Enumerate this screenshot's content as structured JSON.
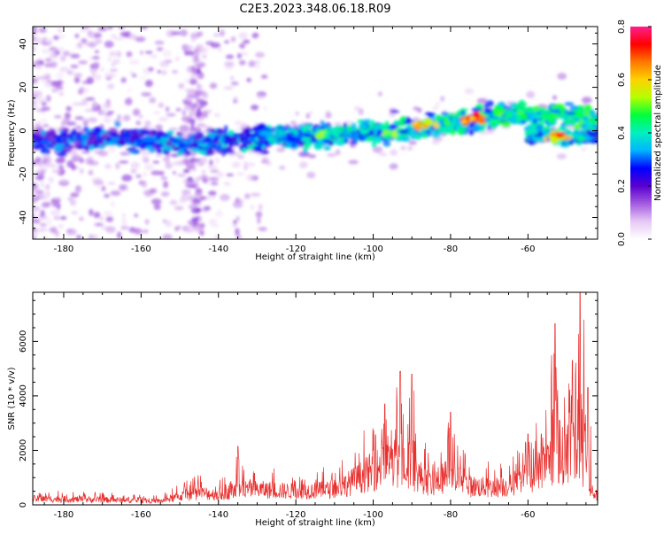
{
  "title": "C2E3.2023.348.06.18.R09",
  "chart_data": [
    {
      "type": "heatmap",
      "xlabel": "Height of straight line (km)",
      "ylabel": "Frequency (Hz)",
      "xlim": [
        -188,
        -42
      ],
      "ylim": [
        -50,
        48
      ],
      "x_ticks": [
        -180,
        -160,
        -140,
        -120,
        -100,
        -80,
        -60
      ],
      "y_ticks": [
        -40,
        -20,
        0,
        20,
        40
      ],
      "colorbar": {
        "label": "Normalized spectral amplitude",
        "range": [
          0.0,
          0.8
        ],
        "ticks": [
          0.0,
          0.2,
          0.4,
          0.6,
          0.8
        ],
        "colors": [
          "#ffffff",
          "#e7c9f5",
          "#a35be0",
          "#5a00d0",
          "#0000ff",
          "#00b4ff",
          "#00f0c0",
          "#00ff3c",
          "#b4ff00",
          "#ffd200",
          "#ff7800",
          "#ff0000",
          "#ff1e8c"
        ]
      },
      "ridge": {
        "points": [
          {
            "x": -188,
            "y": -4
          },
          {
            "x": -180,
            "y": -5
          },
          {
            "x": -170,
            "y": -3
          },
          {
            "x": -160,
            "y": -4
          },
          {
            "x": -150,
            "y": -6
          },
          {
            "x": -140,
            "y": -5
          },
          {
            "x": -130,
            "y": -4
          },
          {
            "x": -120,
            "y": -3
          },
          {
            "x": -110,
            "y": -2
          },
          {
            "x": -100,
            "y": -1
          },
          {
            "x": -90,
            "y": 1
          },
          {
            "x": -80,
            "y": 3
          },
          {
            "x": -75,
            "y": 5
          },
          {
            "x": -70,
            "y": 6
          },
          {
            "x": -62,
            "y": 8
          },
          {
            "x": -55,
            "y": 7
          },
          {
            "x": -42,
            "y": 6
          }
        ],
        "branch": [
          {
            "x": -60,
            "y": -3
          },
          {
            "x": -55,
            "y": -2
          },
          {
            "x": -50,
            "y": -3
          },
          {
            "x": -42,
            "y": -2
          }
        ],
        "hotspots": [
          {
            "x": -74,
            "y": 5,
            "amp": 0.78
          },
          {
            "x": -52,
            "y": -3,
            "amp": 0.75
          },
          {
            "x": -87,
            "y": 3,
            "amp": 0.65
          },
          {
            "x": -112,
            "y": -2,
            "amp": 0.55
          },
          {
            "x": -96,
            "y": -2,
            "amp": 0.55
          },
          {
            "x": -64,
            "y": 7,
            "amp": 0.5
          }
        ]
      }
    },
    {
      "type": "line",
      "xlabel": "Height of straight line (km)",
      "ylabel": "SNR (10 * v/v)",
      "xlim": [
        -188,
        -42
      ],
      "ylim": [
        0,
        7800
      ],
      "x_ticks": [
        -180,
        -160,
        -140,
        -120,
        -100,
        -80,
        -60
      ],
      "y_ticks": [
        0,
        2000,
        4000,
        6000
      ],
      "color": "#e8302e",
      "envelope": [
        {
          "x": -188,
          "y": 350
        },
        {
          "x": -175,
          "y": 320
        },
        {
          "x": -165,
          "y": 280
        },
        {
          "x": -155,
          "y": 220
        },
        {
          "x": -150,
          "y": 500
        },
        {
          "x": -145,
          "y": 700
        },
        {
          "x": -140,
          "y": 600
        },
        {
          "x": -135,
          "y": 900
        },
        {
          "x": -130,
          "y": 900
        },
        {
          "x": -120,
          "y": 800
        },
        {
          "x": -110,
          "y": 900
        },
        {
          "x": -105,
          "y": 1400
        },
        {
          "x": -100,
          "y": 2000
        },
        {
          "x": -95,
          "y": 2500
        },
        {
          "x": -90,
          "y": 2000
        },
        {
          "x": -85,
          "y": 1200
        },
        {
          "x": -80,
          "y": 1800
        },
        {
          "x": -75,
          "y": 1100
        },
        {
          "x": -70,
          "y": 1000
        },
        {
          "x": -65,
          "y": 1100
        },
        {
          "x": -60,
          "y": 1500
        },
        {
          "x": -55,
          "y": 2500
        },
        {
          "x": -50,
          "y": 3000
        },
        {
          "x": -47,
          "y": 3500
        },
        {
          "x": -44,
          "y": 900
        },
        {
          "x": -42,
          "y": 500
        }
      ],
      "peaks": [
        {
          "x": -135,
          "y": 2150
        },
        {
          "x": -97,
          "y": 3700
        },
        {
          "x": -93,
          "y": 4900
        },
        {
          "x": -90,
          "y": 4800
        },
        {
          "x": -80,
          "y": 3400
        },
        {
          "x": -60,
          "y": 2600
        },
        {
          "x": -53,
          "y": 6650
        },
        {
          "x": -48.5,
          "y": 5300
        },
        {
          "x": -46.5,
          "y": 7800
        },
        {
          "x": -44.5,
          "y": 4300
        }
      ]
    }
  ]
}
